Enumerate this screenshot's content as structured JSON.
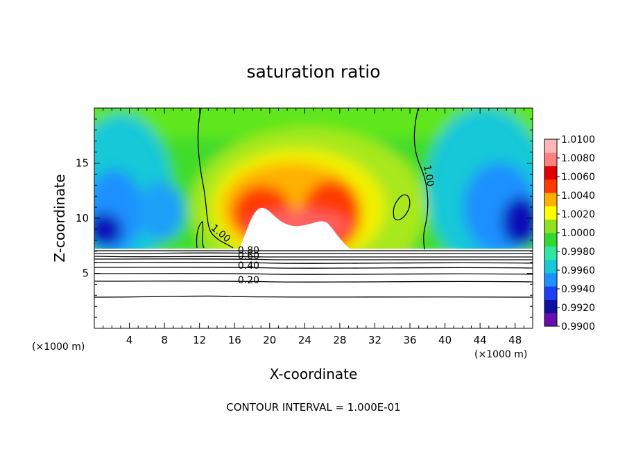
{
  "chart_data": {
    "type": "heatmap",
    "title": "saturation ratio",
    "xlabel": "X-coordinate",
    "ylabel": "Z-coordinate",
    "x_unit_label": "(×1000 m)",
    "z_unit_label": "(×1000 m)",
    "footer": "CONTOUR INTERVAL = 1.000E-01",
    "xlim": [
      0,
      50
    ],
    "ylim": [
      0,
      20
    ],
    "x_ticks": [
      4,
      8,
      12,
      16,
      20,
      24,
      28,
      32,
      36,
      40,
      44,
      48
    ],
    "y_ticks": [
      5,
      10,
      15
    ],
    "grid": false,
    "colorbar": {
      "placement": "right",
      "min": 0.99,
      "max": 1.01,
      "labels": [
        "1.0100",
        "1.0080",
        "1.0060",
        "1.0040",
        "1.0020",
        "1.0000",
        "0.9980",
        "0.9960",
        "0.9940",
        "0.9920",
        "0.9900"
      ],
      "colors": [
        "#6a0dad",
        "#1010a0",
        "#1f3ff5",
        "#1e90ff",
        "#19c8d8",
        "#2ee8a0",
        "#30d830",
        "#8fe01e",
        "#ffff00",
        "#ffb000",
        "#ff3a00",
        "#e00000",
        "#ff8080",
        "#ffb6b6"
      ]
    },
    "contour_labels": [
      {
        "label": "1.00",
        "x": 14.2,
        "z": 8.4
      },
      {
        "label": "1.00",
        "x": 37.8,
        "z": 13.8
      },
      {
        "label": "0.20",
        "x": 17.6,
        "z": 4.1
      },
      {
        "label": "0.40",
        "x": 17.6,
        "z": 5.4
      },
      {
        "label": "0.60",
        "x": 17.6,
        "z": 6.3
      },
      {
        "label": "0.80",
        "x": 17.6,
        "z": 6.8
      }
    ],
    "cloud_base_z": 7.1,
    "series": [
      {
        "values": [
          [
            0,
            0.9985
          ],
          [
            2,
            0.997
          ],
          [
            4,
            0.9935
          ],
          [
            6,
            0.9955
          ],
          [
            8,
            0.9965
          ],
          [
            10,
            0.9985
          ],
          [
            12,
            0.9995
          ],
          [
            14,
            1.0
          ],
          [
            16,
            1.0015
          ],
          [
            18,
            1.008
          ],
          [
            20,
            1.009
          ],
          [
            22,
            1.005
          ],
          [
            24,
            1.0055
          ],
          [
            26,
            1.007
          ],
          [
            28,
            1.0085
          ],
          [
            30,
            1.003
          ],
          [
            32,
            1.0002
          ],
          [
            34,
            0.9998
          ],
          [
            36,
            0.9995
          ],
          [
            38,
            0.999
          ],
          [
            40,
            0.9975
          ],
          [
            42,
            0.996
          ],
          [
            44,
            0.995
          ],
          [
            46,
            0.993
          ],
          [
            48,
            0.9915
          ],
          [
            50,
            0.995
          ]
        ]
      }
    ]
  }
}
